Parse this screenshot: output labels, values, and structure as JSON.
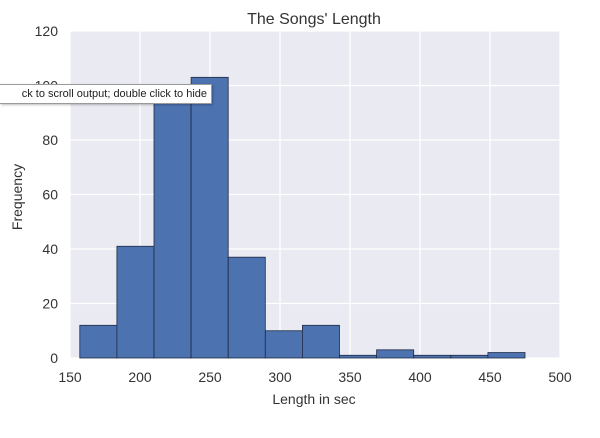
{
  "colors": {
    "plot_background": "#EAEAF2",
    "grid": "#FFFFFF",
    "bar_fill": "#4C72B0",
    "bar_edge": "#1F2A44",
    "text": "#333333"
  },
  "tooltip": {
    "text": "ck to scroll output; double click to hide"
  },
  "chart_data": {
    "type": "bar",
    "subtype": "histogram",
    "title": "The Songs' Length",
    "xlabel": "Length in sec",
    "ylabel": "Frequency",
    "xlim": [
      150,
      500
    ],
    "ylim": [
      0,
      120
    ],
    "xticks": [
      150,
      200,
      250,
      300,
      350,
      400,
      450,
      500
    ],
    "yticks": [
      0,
      20,
      40,
      60,
      80,
      100,
      120
    ],
    "bin_edges": [
      157,
      183.5,
      210,
      236.5,
      263,
      289.5,
      316,
      342.5,
      369,
      395.5,
      422,
      448.5,
      475
    ],
    "values": [
      12,
      41,
      97,
      103,
      37,
      10,
      12,
      1,
      3,
      1,
      1,
      2
    ],
    "grid": true
  }
}
